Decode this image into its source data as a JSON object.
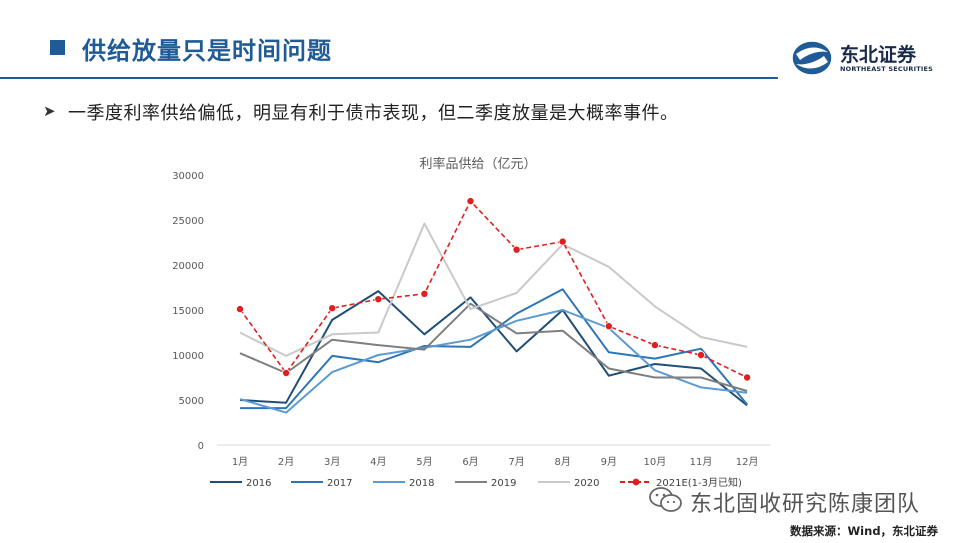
{
  "header": {
    "title": "供给放量只是时间问题",
    "brand_name_cn": "东北证券",
    "brand_name_en": "NORTHEAST SECURITIES"
  },
  "bullet": {
    "text": "一季度利率供给偏低，明显有利于债市表现，但二季度放量是大概率事件。"
  },
  "chart_data": {
    "type": "line",
    "title": "利率品供给（亿元）",
    "xlabel": "",
    "ylabel": "",
    "ylim": [
      0,
      30000
    ],
    "yticks": [
      0,
      5000,
      10000,
      15000,
      20000,
      25000,
      30000
    ],
    "grid": false,
    "legend_position": "bottom",
    "categories": [
      "1月",
      "2月",
      "3月",
      "4月",
      "5月",
      "6月",
      "7月",
      "8月",
      "9月",
      "10月",
      "11月",
      "12月"
    ],
    "series": [
      {
        "name": "2016",
        "color": "#1f4e79",
        "dashed": false,
        "values": [
          5000,
          4700,
          13900,
          17100,
          12300,
          16400,
          10400,
          15000,
          7700,
          9000,
          8500,
          4400
        ]
      },
      {
        "name": "2017",
        "color": "#2e75b6",
        "dashed": false,
        "values": [
          4100,
          4100,
          9900,
          9200,
          11000,
          10900,
          14600,
          17300,
          10300,
          9600,
          10700,
          4500
        ]
      },
      {
        "name": "2018",
        "color": "#5b9bd5",
        "dashed": false,
        "values": [
          5100,
          3600,
          8100,
          10000,
          10800,
          11700,
          13800,
          15000,
          13000,
          8300,
          6400,
          5800
        ]
      },
      {
        "name": "2019",
        "color": "#7f7f7f",
        "dashed": false,
        "values": [
          10200,
          8000,
          11700,
          11100,
          10600,
          15700,
          12400,
          12700,
          8500,
          7500,
          7500,
          6000
        ]
      },
      {
        "name": "2020",
        "color": "#c9c9c9",
        "dashed": false,
        "values": [
          12500,
          9900,
          12300,
          12500,
          24600,
          15100,
          16900,
          22300,
          19800,
          15400,
          12000,
          10900
        ]
      },
      {
        "name": "2021E(1-3月已知)",
        "color": "#e02020",
        "dashed": true,
        "values": [
          15100,
          8000,
          15200,
          16200,
          16800,
          27100,
          21700,
          22600,
          13200,
          11100,
          10000,
          7500
        ]
      }
    ]
  },
  "watermark": {
    "text": "东北固收研究陈康团队"
  },
  "source": {
    "text": "数据来源：Wind，东北证券"
  }
}
